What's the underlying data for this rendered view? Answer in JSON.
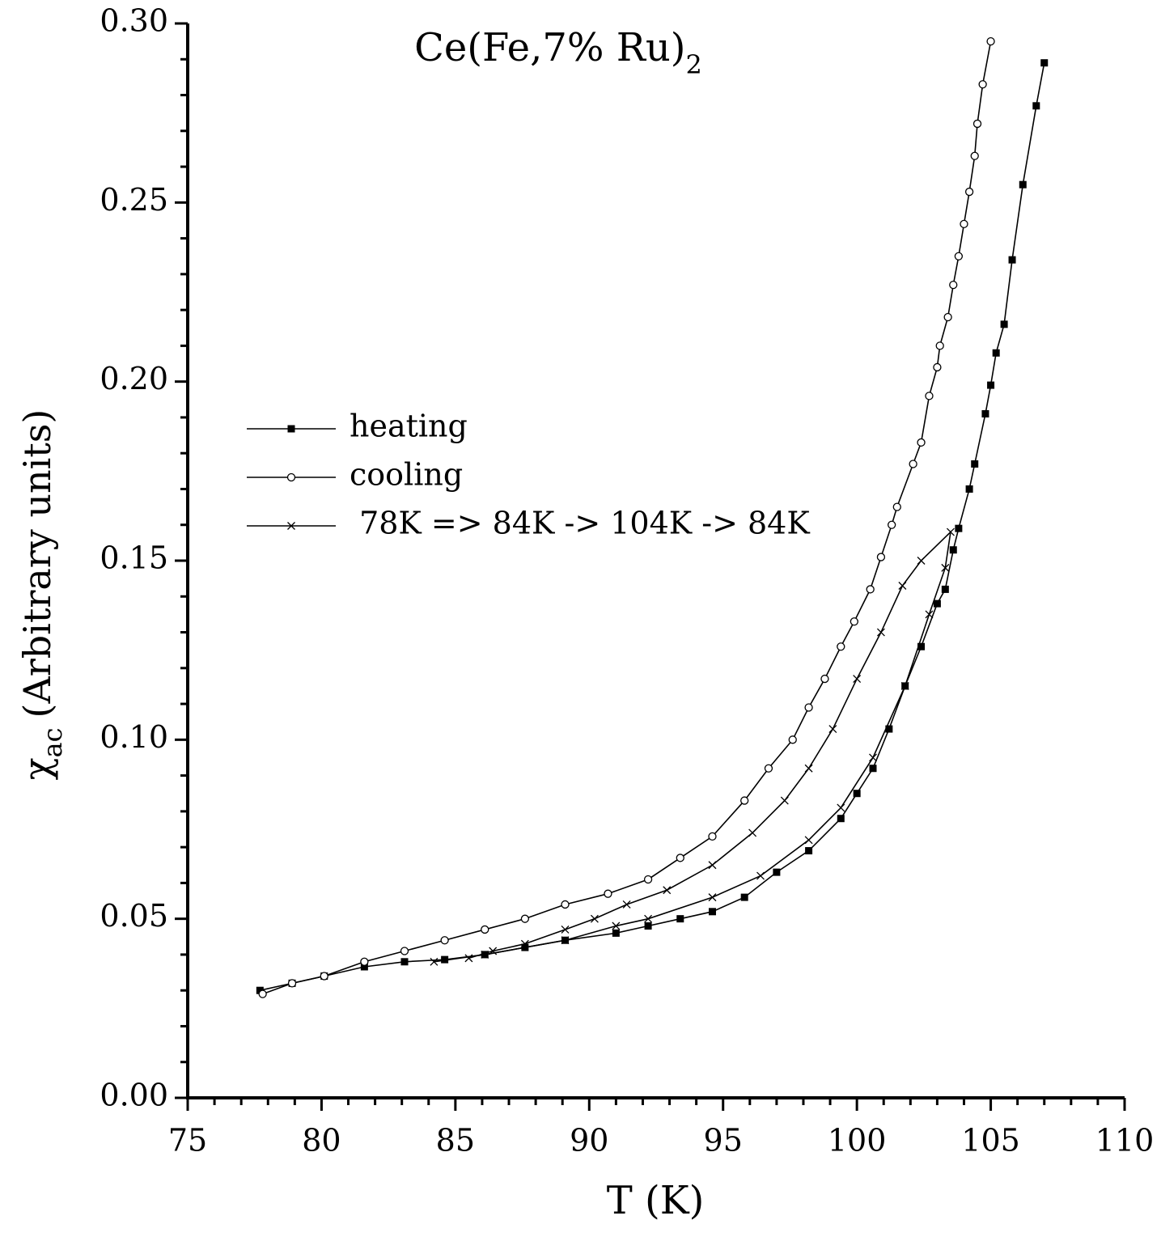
{
  "chart_data": {
    "type": "scatter",
    "title": {
      "text": "Ce(Fe,7% Ru)",
      "subscript": "2"
    },
    "xlabel": "T (K)",
    "ylabel": {
      "symbol": "χ",
      "subscript": "ac",
      "text": "(Arbitrary units)"
    },
    "xlim": [
      75,
      110
    ],
    "xticks": [
      75,
      80,
      85,
      90,
      95,
      100,
      105,
      110
    ],
    "ylim": [
      0,
      0.3
    ],
    "yticks": [
      {
        "value": 0,
        "label": "0.00"
      },
      {
        "value": 0.05,
        "label": "0.05"
      },
      {
        "value": 0.1,
        "label": "0.10"
      },
      {
        "value": 0.15,
        "label": "0.15"
      },
      {
        "value": 0.2,
        "label": "0.20"
      },
      {
        "value": 0.25,
        "label": "0.25"
      },
      {
        "value": 0.3,
        "label": "0.30"
      }
    ],
    "minor_ticks": true,
    "grid": false,
    "legend": "upper left",
    "series": [
      {
        "name": "heating",
        "color": "#000000",
        "marker": "square",
        "x": [
          77.7,
          78.9,
          80.1,
          81.6,
          83.1,
          84.6,
          86.1,
          87.6,
          89.1,
          91.0,
          92.2,
          93.4,
          94.6,
          95.8,
          97.0,
          98.2,
          99.4,
          100.0,
          100.6,
          101.2,
          101.8,
          102.4,
          103.0,
          103.3,
          103.6,
          103.8,
          104.2,
          104.4,
          104.8,
          105.0,
          105.2,
          105.5,
          105.8,
          106.2,
          106.7,
          107.0
        ],
        "values": [
          0.03,
          0.032,
          0.034,
          0.0366,
          0.038,
          0.0386,
          0.04,
          0.042,
          0.044,
          0.046,
          0.048,
          0.05,
          0.052,
          0.056,
          0.063,
          0.069,
          0.078,
          0.085,
          0.092,
          0.103,
          0.115,
          0.126,
          0.138,
          0.142,
          0.153,
          0.159,
          0.17,
          0.177,
          0.191,
          0.199,
          0.208,
          0.216,
          0.234,
          0.255,
          0.277,
          0.289
        ]
      },
      {
        "name": "cooling",
        "color": "#000000",
        "marker": "circle",
        "x": [
          105.0,
          104.7,
          104.5,
          104.4,
          104.2,
          104.0,
          103.8,
          103.6,
          103.4,
          103.1,
          103.0,
          102.7,
          102.4,
          102.1,
          101.5,
          101.3,
          100.9,
          100.5,
          99.9,
          99.4,
          98.8,
          98.2,
          97.6,
          96.7,
          95.8,
          94.6,
          93.4,
          92.2,
          90.7,
          89.1,
          87.6,
          86.1,
          84.6,
          83.1,
          81.6,
          80.1,
          78.9,
          77.8
        ],
        "values": [
          0.295,
          0.283,
          0.272,
          0.263,
          0.253,
          0.244,
          0.235,
          0.227,
          0.218,
          0.21,
          0.204,
          0.196,
          0.183,
          0.177,
          0.165,
          0.16,
          0.151,
          0.142,
          0.133,
          0.126,
          0.117,
          0.109,
          0.1,
          0.092,
          0.083,
          0.073,
          0.067,
          0.061,
          0.057,
          0.054,
          0.05,
          0.047,
          0.044,
          0.041,
          0.038,
          0.034,
          0.032,
          0.029
        ]
      },
      {
        "name": " 78K => 84K -> 104K -> 84K",
        "color": "#000000",
        "marker": "cross",
        "x": [
          84.2,
          86.1,
          89.1,
          91.0,
          92.2,
          94.6,
          96.4,
          98.2,
          99.4,
          100.6,
          101.8,
          102.7,
          103.3,
          103.5,
          102.4,
          101.7,
          100.9,
          100.0,
          99.1,
          98.2,
          97.3,
          96.1,
          94.6,
          92.9,
          91.4,
          90.2,
          89.1,
          87.6,
          86.4,
          85.5
        ],
        "values": [
          0.038,
          0.04,
          0.044,
          0.048,
          0.05,
          0.056,
          0.062,
          0.072,
          0.081,
          0.095,
          0.115,
          0.135,
          0.148,
          0.158,
          0.15,
          0.143,
          0.13,
          0.117,
          0.103,
          0.092,
          0.083,
          0.074,
          0.065,
          0.058,
          0.054,
          0.05,
          0.047,
          0.043,
          0.041,
          0.039
        ]
      }
    ]
  }
}
